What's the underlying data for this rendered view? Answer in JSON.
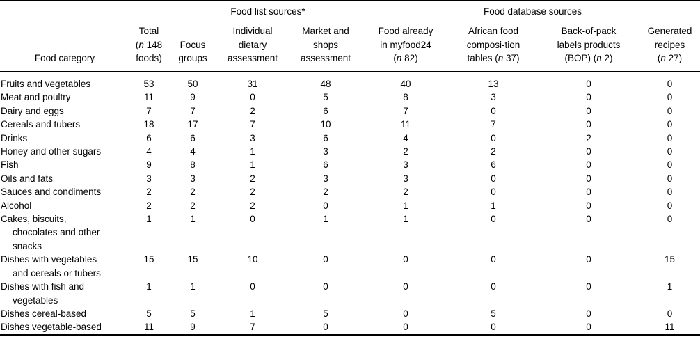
{
  "table": {
    "group_headers": {
      "food_list": "Food list sources*",
      "food_database": "Food database sources"
    },
    "column_headers": {
      "food_category": "Food category",
      "total": "Total\n(*n* 148\nfoods)",
      "focus_groups": "Focus\ngroups",
      "individual_dietary": "Individual\ndietary\nassessment",
      "market_shops": "Market and\nshops\nassessment",
      "myfood24": "Food already\nin myfood24\n(*n* 82)",
      "african_tables": "African food\ncomposi-tion\ntables (*n* 37)",
      "bop": "Back-of-pack\nlabels products\n(BOP) (*n* 2)",
      "generated_recipes": "Generated\nrecipes\n(*n* 27)"
    },
    "rows": [
      {
        "category": "Fruits and vegetables",
        "values": [
          53,
          50,
          31,
          48,
          40,
          13,
          0,
          0
        ]
      },
      {
        "category": "Meat and poultry",
        "values": [
          11,
          9,
          0,
          5,
          8,
          3,
          0,
          0
        ]
      },
      {
        "category": "Dairy and eggs",
        "values": [
          7,
          7,
          2,
          6,
          7,
          0,
          0,
          0
        ]
      },
      {
        "category": "Cereals and tubers",
        "values": [
          18,
          17,
          7,
          10,
          11,
          7,
          0,
          0
        ]
      },
      {
        "category": "Drinks",
        "values": [
          6,
          6,
          3,
          6,
          4,
          0,
          2,
          0
        ]
      },
      {
        "category": "Honey and other sugars",
        "values": [
          4,
          4,
          1,
          3,
          2,
          2,
          0,
          0
        ]
      },
      {
        "category": "Fish",
        "values": [
          9,
          8,
          1,
          6,
          3,
          6,
          0,
          0
        ]
      },
      {
        "category": "Oils and fats",
        "values": [
          3,
          3,
          2,
          3,
          3,
          0,
          0,
          0
        ]
      },
      {
        "category": "Sauces and condiments",
        "values": [
          2,
          2,
          2,
          2,
          2,
          0,
          0,
          0
        ]
      },
      {
        "category": "Alcohol",
        "values": [
          2,
          2,
          2,
          0,
          1,
          1,
          0,
          0
        ]
      },
      {
        "category": "Cakes, biscuits,\nchocolates and other\nsnacks",
        "values": [
          1,
          1,
          0,
          1,
          1,
          0,
          0,
          0
        ]
      },
      {
        "category": "Dishes with vegetables\nand cereals or tubers",
        "values": [
          15,
          15,
          10,
          0,
          0,
          0,
          0,
          15
        ]
      },
      {
        "category": "Dishes with fish and\nvegetables",
        "values": [
          1,
          1,
          0,
          0,
          0,
          0,
          0,
          1
        ]
      },
      {
        "category": "Dishes cereal-based",
        "values": [
          5,
          5,
          1,
          5,
          0,
          5,
          0,
          0
        ]
      },
      {
        "category": "Dishes vegetable-based",
        "values": [
          11,
          9,
          7,
          0,
          0,
          0,
          0,
          11
        ]
      }
    ]
  }
}
